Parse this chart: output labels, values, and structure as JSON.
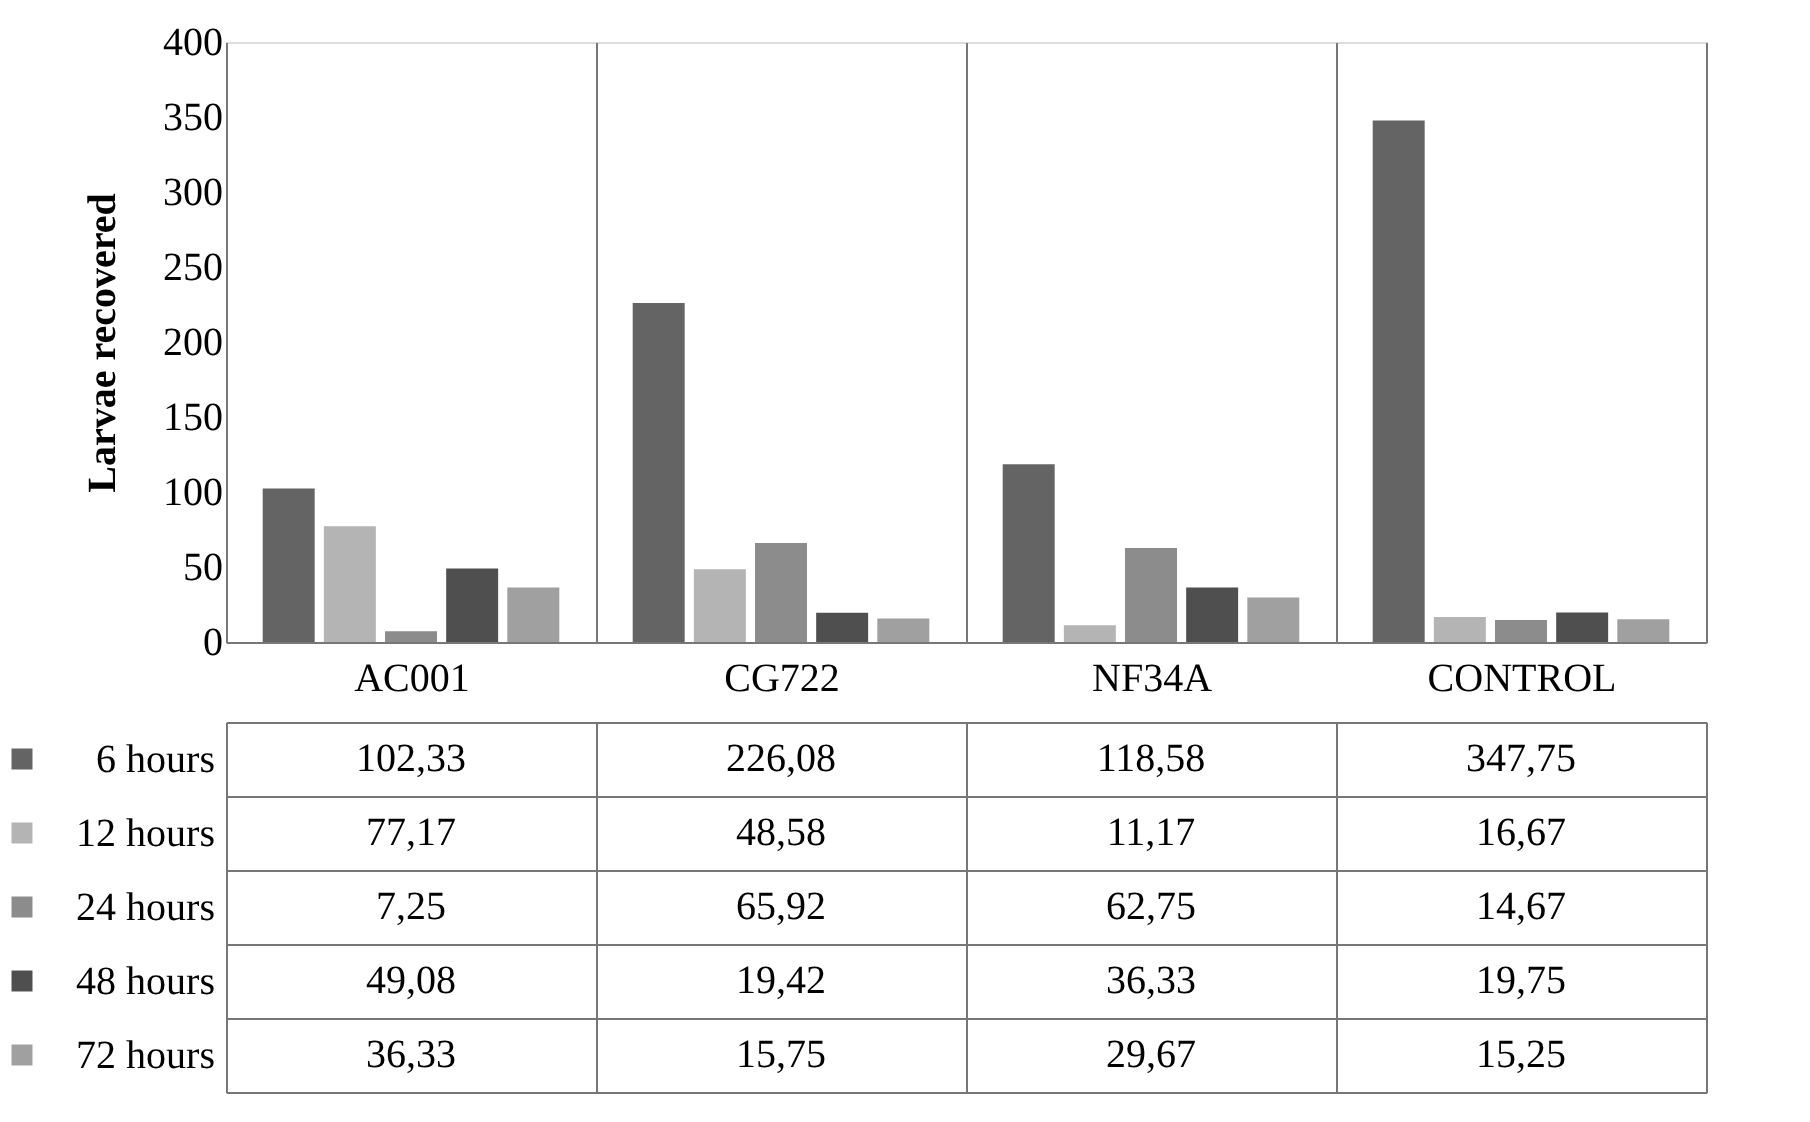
{
  "chart_data": {
    "type": "bar",
    "ylabel": "Larvae recovered",
    "categories": [
      "AC001",
      "CG722",
      "NF34A",
      "CONTROL"
    ],
    "series": [
      {
        "name": "6 hours",
        "color": "#646464",
        "values": [
          102.33,
          226.08,
          118.58,
          347.75
        ],
        "value_labels": [
          "102,33",
          "226,08",
          "118,58",
          "347,75"
        ]
      },
      {
        "name": "12 hours",
        "color": "#b4b4b4",
        "values": [
          77.17,
          48.58,
          11.17,
          16.67
        ],
        "value_labels": [
          "77,17",
          "48,58",
          "11,17",
          "16,67"
        ]
      },
      {
        "name": "24 hours",
        "color": "#8c8c8c",
        "values": [
          7.25,
          65.92,
          62.75,
          14.67
        ],
        "value_labels": [
          "7,25",
          "65,92",
          "62,75",
          "14,67"
        ]
      },
      {
        "name": "48 hours",
        "color": "#4f4f4f",
        "values": [
          49.08,
          19.42,
          36.33,
          19.75
        ],
        "value_labels": [
          "49,08",
          "19,42",
          "36,33",
          "19,75"
        ]
      },
      {
        "name": "72 hours",
        "color": "#a0a0a0",
        "values": [
          36.33,
          15.75,
          29.67,
          15.25
        ],
        "value_labels": [
          "36,33",
          "15,75",
          "29,67",
          "15,25"
        ]
      }
    ],
    "ylim": [
      0,
      400
    ],
    "yticks": [
      0,
      50,
      100,
      150,
      200,
      250,
      300,
      350,
      400
    ],
    "grid": false,
    "legend": "bottom"
  }
}
